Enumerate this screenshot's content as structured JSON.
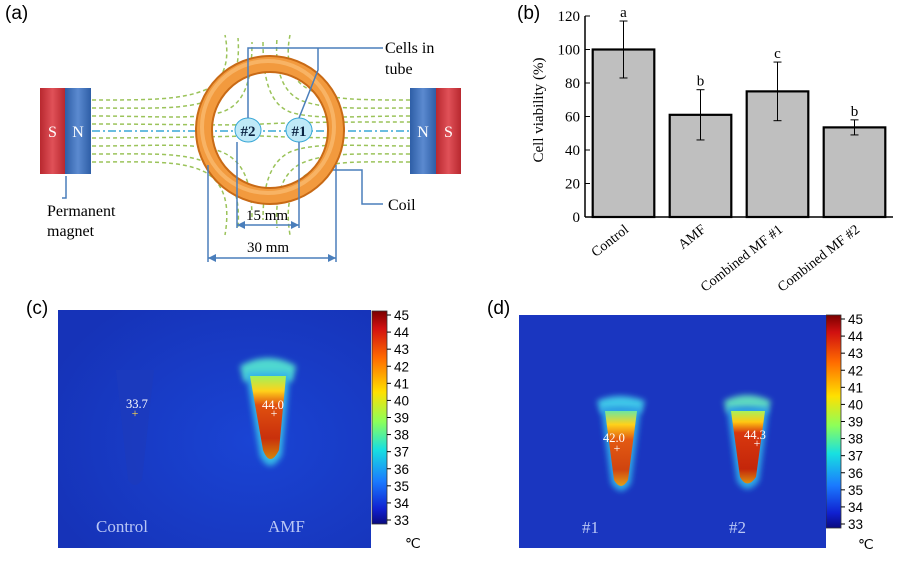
{
  "panels": {
    "a": "(a)",
    "b": "(b)",
    "c": "(c)",
    "d": "(d)"
  },
  "diagram": {
    "magnet_left": {
      "s": "S",
      "n": "N"
    },
    "magnet_right": {
      "n": "N",
      "s": "S"
    },
    "sample2": "#2",
    "sample1": "#1",
    "cells_label_line1": "Cells in",
    "cells_label_line2": "tube",
    "coil_label": "Coil",
    "magnet_label_line1": "Permanent",
    "magnet_label_line2": "magnet",
    "dim_15": "15 mm",
    "dim_30": "30 mm",
    "colors": {
      "magnet_red": "#c8333a",
      "magnet_blue": "#3d6fb6",
      "coil": "#f08a2c",
      "field_lines": "#9bc35a",
      "axis_line": "#39a7d6"
    }
  },
  "chart_data": {
    "type": "bar",
    "categories": [
      "Control",
      "AMF",
      "Combined MF #1",
      "Combined MF #2"
    ],
    "values": [
      100,
      61,
      75,
      53.5
    ],
    "error": [
      17,
      15,
      17.5,
      4.5
    ],
    "significance": [
      "a",
      "b",
      "c",
      "b"
    ],
    "ylabel": "Cell viability (%)",
    "ylim": [
      0,
      120
    ],
    "yticks": [
      "0",
      "20",
      "40",
      "60",
      "80",
      "100",
      "120"
    ],
    "bar_color": "#bfbfbf",
    "grid": false
  },
  "thermal_c": {
    "labels": [
      "Control",
      "AMF"
    ],
    "readings": [
      "33.7",
      "44.0"
    ],
    "scale_ticks": [
      "45",
      "44",
      "43",
      "42",
      "41",
      "40",
      "39",
      "38",
      "37",
      "36",
      "35",
      "34",
      "33"
    ],
    "unit": "℃"
  },
  "thermal_d": {
    "labels": [
      "#1",
      "#2"
    ],
    "readings": [
      "42.0",
      "44.3"
    ],
    "scale_ticks": [
      "45",
      "44",
      "43",
      "42",
      "41",
      "40",
      "39",
      "38",
      "37",
      "36",
      "35",
      "34",
      "33"
    ],
    "unit": "℃"
  }
}
